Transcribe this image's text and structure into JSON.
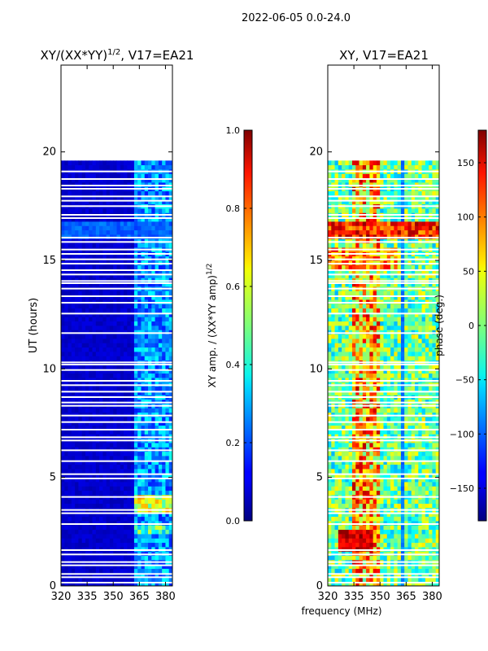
{
  "suptitle": "2022-06-05 0.0-24.0",
  "chart_data": [
    {
      "type": "heatmap",
      "title_main": "XY/(XX*YY)",
      "title_exp": "1/2",
      "title_tail": ", V17=EA21",
      "xlabel": "",
      "ylabel": "UT (hours)",
      "xlim": [
        320,
        384
      ],
      "ylim": [
        0,
        24
      ],
      "xticks": [
        320,
        335,
        350,
        365,
        380
      ],
      "yticks": [
        0,
        5,
        10,
        15,
        20
      ],
      "data_extent_hours": [
        0.0,
        19.6
      ],
      "colorbar": {
        "label_main": "XY amp. / (XX*YY amp)",
        "label_exp": "1/2",
        "range": [
          0.0,
          1.0
        ],
        "ticks": [
          "0.0",
          "0.2",
          "0.4",
          "0.6",
          "0.8",
          "1.0"
        ],
        "tick_values": [
          0.0,
          0.2,
          0.4,
          0.6,
          0.8,
          1.0
        ]
      },
      "colormap": "jet"
    },
    {
      "type": "heatmap",
      "title_main": "XY, V17=EA21",
      "xlabel": "frequency (MHz)",
      "ylabel": "",
      "xlim": [
        320,
        384
      ],
      "ylim": [
        0,
        24
      ],
      "xticks": [
        320,
        335,
        350,
        365,
        380
      ],
      "yticks": [
        0,
        5,
        10,
        15,
        20
      ],
      "data_extent_hours": [
        0.0,
        19.6
      ],
      "colorbar": {
        "label_main": "phase (deg.)",
        "range": [
          -180,
          180
        ],
        "ticks": [
          "−150",
          "−100",
          "−50",
          "0",
          "50",
          "100",
          "150"
        ],
        "tick_values": [
          -150,
          -100,
          -50,
          0,
          50,
          100,
          150
        ]
      },
      "colormap": "jet"
    }
  ],
  "flagged_hours": [
    0.15,
    0.4,
    0.55,
    0.95,
    1.1,
    1.45,
    1.65,
    2.85,
    3.35,
    3.5,
    4.1,
    4.95,
    5.15,
    5.75,
    6.25,
    6.7,
    6.85,
    7.2,
    7.55,
    7.85,
    8.3,
    8.45,
    8.7,
    8.95,
    9.25,
    9.45,
    9.95,
    10.2,
    10.3,
    11.65,
    12.55,
    13.05,
    13.35,
    13.7,
    13.95,
    14.05,
    14.35,
    14.55,
    14.85,
    15.05,
    15.3,
    15.5,
    15.85,
    16.05,
    16.95,
    17.1,
    17.5,
    17.75,
    17.95,
    18.3,
    18.45,
    18.75,
    19.1
  ]
}
